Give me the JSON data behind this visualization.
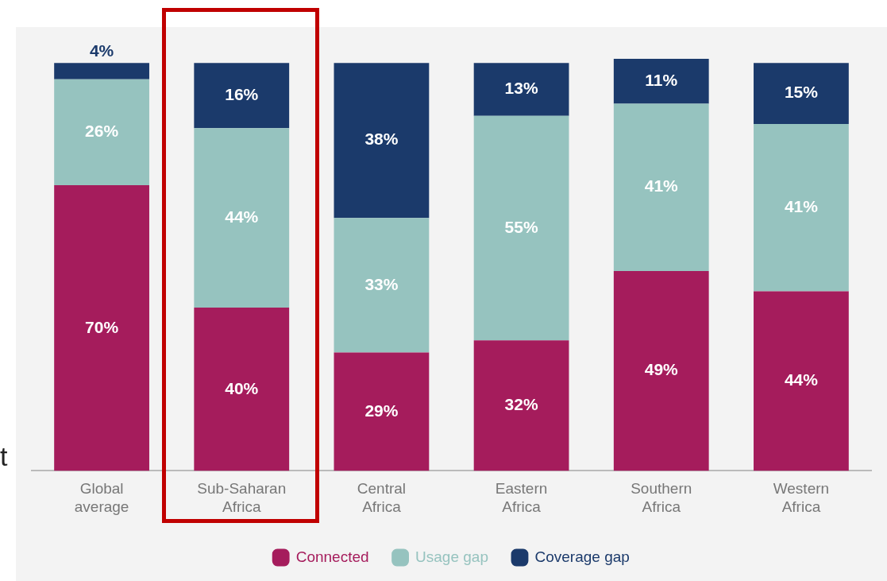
{
  "chart_data": {
    "type": "bar",
    "stacked": true,
    "legend": "bottom",
    "categories": [
      "Global average",
      "Sub-Saharan Africa",
      "Central Africa",
      "Eastern Africa",
      "Southern Africa",
      "Western Africa"
    ],
    "series": [
      {
        "name": "Connected",
        "color": "#a51c5c",
        "values": [
          70,
          40,
          29,
          32,
          49,
          44
        ],
        "value_labels": [
          "70%",
          "40%",
          "29%",
          "32%",
          "49%",
          "44%"
        ]
      },
      {
        "name": "Usage gap",
        "color": "#96c3bf",
        "values": [
          26,
          44,
          33,
          55,
          41,
          41
        ],
        "value_labels": [
          "26%",
          "44%",
          "33%",
          "55%",
          "41%",
          "41%"
        ]
      },
      {
        "name": "Coverage gap",
        "color": "#1b3a6b",
        "values": [
          4,
          16,
          38,
          13,
          11,
          15
        ],
        "value_labels": [
          "4%",
          "16%",
          "38%",
          "13%",
          "11%",
          "15%"
        ]
      }
    ],
    "annotations": [
      "t"
    ]
  }
}
